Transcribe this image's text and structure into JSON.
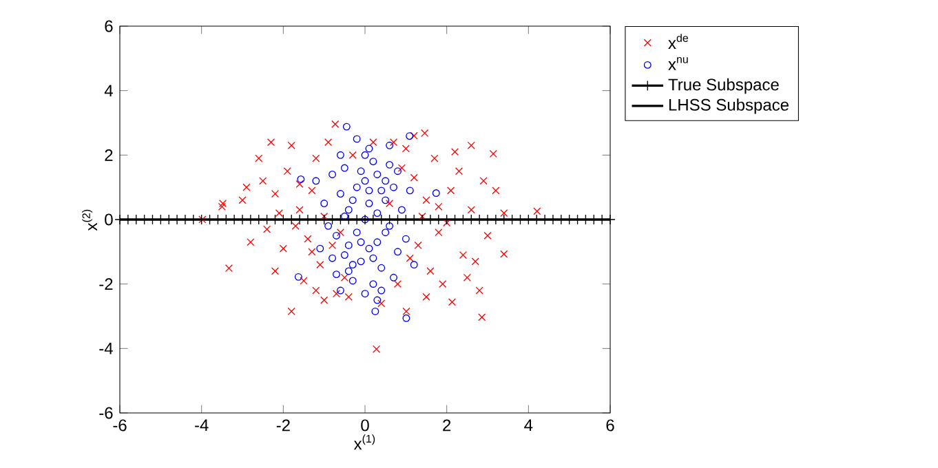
{
  "chart_data": {
    "type": "scatter",
    "xlabel": "x$^{(1)}$",
    "ylabel": "x$^{(2)}$",
    "xlim": [
      -6,
      6
    ],
    "ylim": [
      -6,
      6
    ],
    "xticks": [
      -6,
      -4,
      -2,
      0,
      2,
      4,
      6
    ],
    "yticks": [
      -6,
      -4,
      -2,
      0,
      2,
      4,
      6
    ],
    "legend": "top right",
    "series": [
      {
        "name": "x$^{de}$",
        "type": "scatter",
        "marker": "cross",
        "color": "#ff0000",
        "x": [
          0.28,
          2.86,
          -3.33,
          4.21,
          3.14,
          -0.73,
          1.46,
          -1.8,
          2.13,
          3.4,
          -3.48,
          -3.98,
          1.01,
          -2.5,
          -2.2,
          -1.9,
          -1.6,
          -1.4,
          -2.0,
          -2.4,
          -1.2,
          -1.8,
          -2.6,
          -1.1,
          -1.5,
          -2.8,
          -3.0,
          -2.2,
          -0.9,
          -1.3,
          -1.0,
          -0.8,
          -1.7,
          -2.1,
          -1.3,
          -2.9,
          -2.3,
          -0.7,
          -1.0,
          -0.5,
          -3.5,
          -1.6,
          -1.2,
          1.2,
          1.5,
          1.8,
          2.1,
          2.4,
          1.6,
          1.3,
          2.6,
          2.9,
          2.2,
          1.7,
          1.0,
          1.9,
          2.5,
          3.0,
          1.4,
          2.0,
          1.1,
          0.9,
          2.7,
          3.2,
          2.3,
          1.5,
          0.8,
          3.4,
          1.8,
          2.6,
          1.2,
          0.7,
          2.8,
          -0.3,
          0.4,
          0.2,
          -0.4,
          0.6,
          -0.6
        ],
        "values": [
          -4.02,
          -3.03,
          -1.51,
          0.26,
          2.04,
          2.96,
          2.68,
          -2.85,
          -2.56,
          -1.07,
          0.5,
          0.0,
          -2.85,
          1.2,
          0.8,
          1.5,
          0.3,
          -0.6,
          -0.9,
          -0.3,
          1.9,
          2.3,
          1.9,
          -1.4,
          -1.9,
          -0.7,
          0.6,
          -1.6,
          2.4,
          0.9,
          0.1,
          -0.8,
          -0.2,
          0.2,
          -1.0,
          1.0,
          2.4,
          -2.3,
          -2.5,
          -1.8,
          0.4,
          1.1,
          -2.2,
          1.3,
          0.6,
          -0.4,
          0.9,
          -1.1,
          -1.6,
          -0.8,
          0.3,
          1.2,
          2.1,
          1.9,
          2.2,
          -2.0,
          -1.8,
          -0.5,
          0.1,
          -0.1,
          -1.2,
          1.6,
          -1.3,
          0.9,
          1.5,
          -2.4,
          -2.0,
          0.2,
          0.4,
          2.3,
          2.6,
          2.4,
          -2.2,
          2.0,
          -2.6,
          2.4,
          -2.4,
          0.5,
          -0.4
        ]
      },
      {
        "name": "x$^{nu}$",
        "type": "scatter",
        "marker": "circle",
        "color": "#0000ff",
        "x": [
          0,
          0.1,
          -0.2,
          0.3,
          -0.4,
          0.5,
          -0.1,
          0.2,
          -0.3,
          0.6,
          -0.6,
          0.4,
          -0.5,
          0.1,
          0.0,
          0.7,
          -0.7,
          0.3,
          -0.2,
          0.8,
          -0.8,
          0.2,
          -0.1,
          0.5,
          -0.4,
          0.9,
          -0.9,
          0.1,
          -0.3,
          0.6,
          -0.6,
          0.4,
          -0.2,
          0.3,
          1.0,
          -1.0,
          0.0,
          0.2,
          -0.5,
          0.7,
          -0.7,
          0.1,
          -0.1,
          0.4,
          -0.4,
          0.8,
          -0.8,
          1.1,
          -1.1,
          0.5,
          -0.5,
          0.3,
          -0.3,
          0.0,
          0.6,
          -0.6,
          1.2,
          -1.2,
          -0.45,
          1.09,
          1.01,
          0.25,
          -1.63,
          1.74,
          -1.57
        ],
        "values": [
          0,
          0.5,
          1.0,
          -0.7,
          0.3,
          1.2,
          -1.3,
          1.8,
          -1.9,
          -0.2,
          0.8,
          -1.5,
          -1.1,
          2.2,
          -2.3,
          1.0,
          -0.5,
          0.2,
          -0.4,
          -1.0,
          1.4,
          -2.0,
          1.5,
          0.6,
          -1.6,
          0.3,
          -0.2,
          -0.9,
          0.6,
          1.7,
          2.0,
          -2.2,
          2.5,
          -2.5,
          -0.6,
          0.5,
          1.2,
          -1.2,
          1.6,
          -1.8,
          -1.7,
          0.9,
          -0.7,
          0.9,
          -0.8,
          1.5,
          -1.2,
          0.9,
          -0.9,
          -0.4,
          0.1,
          1.4,
          -1.4,
          2.0,
          2.3,
          -2.2,
          -1.4,
          1.2,
          2.88,
          2.59,
          -3.06,
          -2.85,
          -1.78,
          0.82,
          1.25
        ]
      },
      {
        "name": "True Subspace",
        "type": "line",
        "marker": "cross",
        "line_style": "solid",
        "color": "#000000",
        "x": [
          -6,
          -5.8,
          -5.6,
          -5.4,
          -5.2,
          -5,
          -4.8,
          -4.6,
          -4.4,
          -4.2,
          -4,
          -3.8,
          -3.6,
          -3.4,
          -3.2,
          -3,
          -2.8,
          -2.6,
          -2.4,
          -2.2,
          -2,
          -1.8,
          -1.6,
          -1.4,
          -1.2,
          -1,
          -0.8,
          -0.6,
          -0.4,
          -0.2,
          0,
          0.2,
          0.4,
          0.6,
          0.8,
          1,
          1.2,
          1.4,
          1.6,
          1.8,
          2,
          2.2,
          2.4,
          2.6,
          2.8,
          3,
          3.2,
          3.4,
          3.6,
          3.8,
          4,
          4.2,
          4.4,
          4.6,
          4.8,
          5,
          5.2,
          5.4,
          5.6,
          5.8,
          6
        ],
        "values": [
          0,
          0,
          0,
          0,
          0,
          0,
          0,
          0,
          0,
          0,
          0,
          0,
          0,
          0,
          0,
          0,
          0,
          0,
          0,
          0,
          0,
          0,
          0,
          0,
          0,
          0,
          0,
          0,
          0,
          0,
          0,
          0,
          0,
          0,
          0,
          0,
          0,
          0,
          0,
          0,
          0,
          0,
          0,
          0,
          0,
          0,
          0,
          0,
          0,
          0,
          0,
          0,
          0,
          0,
          0,
          0,
          0,
          0,
          0,
          0,
          0
        ]
      },
      {
        "name": "LHSS Subspace",
        "type": "line",
        "marker": "none",
        "line_style": "solid",
        "color": "#000000",
        "x": [
          -6,
          6
        ],
        "values": [
          0,
          0
        ]
      }
    ]
  }
}
